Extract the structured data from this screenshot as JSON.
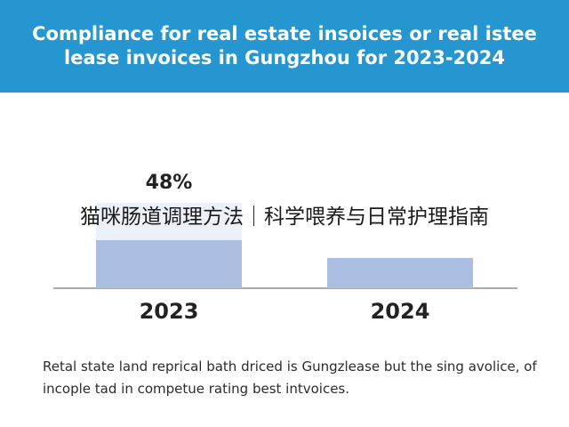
{
  "header": {
    "title": "Compliance for real estate insoices or real istee lease invoices in Gungzhou for 2023-2024",
    "background": "#2596cf"
  },
  "banner": {
    "text": "猫咪肠道调理方法｜科学喂养与日常护理指南"
  },
  "caption": {
    "text": "Retal state land reprical bath driced is Gungzlease but the sing avolice, of incople tad in competue rating best intvoices."
  },
  "chart_data": {
    "type": "bar",
    "title": "Compliance for real estate insoices or real istee lease invoices in Gungzhou for 2023-2024",
    "categories": [
      "2023",
      "2024"
    ],
    "values": [
      48,
      17
    ],
    "data_labels": [
      "48%",
      ""
    ],
    "ylim": [
      0,
      55
    ],
    "grid": false,
    "bar_color": "#aabfe2",
    "xlabel": "",
    "ylabel": ""
  }
}
